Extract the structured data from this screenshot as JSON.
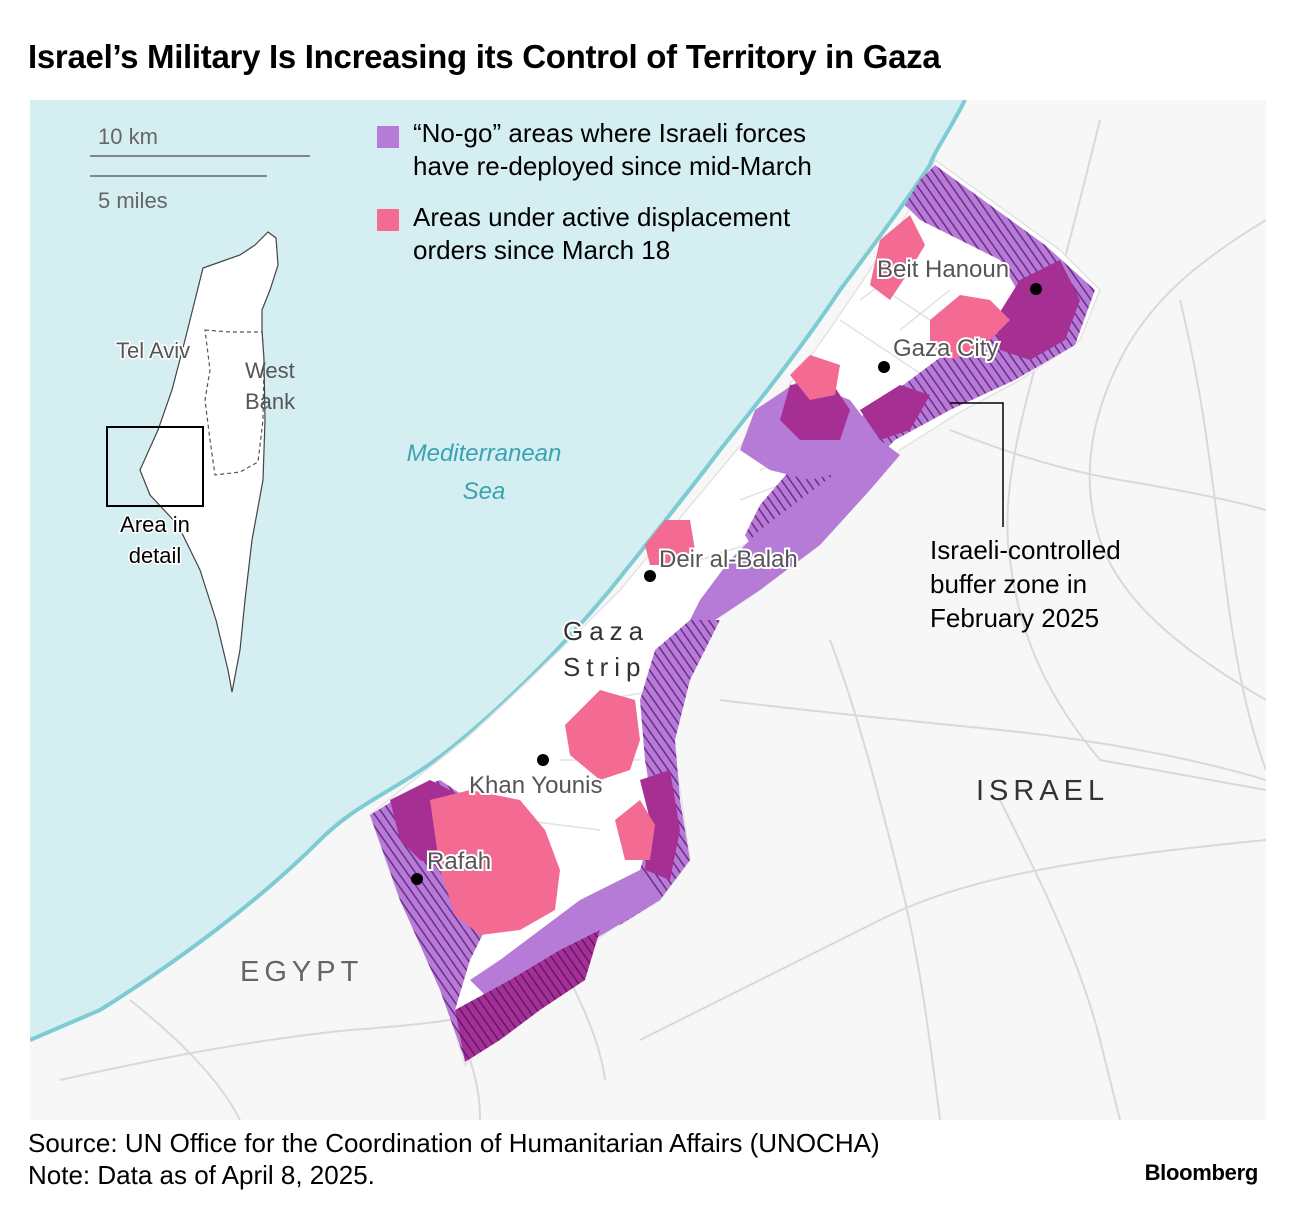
{
  "title": "Israel’s Military Is Increasing its Control of Territory in Gaza",
  "scale": {
    "km": "10 km",
    "miles": "5 miles"
  },
  "legend": [
    {
      "color": "#b57bd6",
      "line1": "“No-go” areas where Israeli forces",
      "line2": "have re-deployed since mid-March"
    },
    {
      "color": "#f36a92",
      "line1": "Areas under active displacement",
      "line2": "orders since March 18"
    }
  ],
  "colors": {
    "sea": "#d4eef1",
    "coast": "#7dcbd3",
    "land": "#f7f7f7",
    "strip": "#ffffff",
    "nogo": "#b57bd6",
    "displacement": "#f36a92",
    "overlap": "#a52f93",
    "buffer_hatch": "#7a3a8e"
  },
  "inset": {
    "tel_aviv": "Tel Aviv",
    "west_bank_1": "West",
    "west_bank_2": "Bank",
    "area_1": "Area in",
    "area_2": "detail"
  },
  "labels": {
    "sea_1": "Mediterranean",
    "sea_2": "Sea",
    "beit_hanoun": "Beit Hanoun",
    "gaza_city": "Gaza City",
    "deir_al_balah": "Deir al-Balah",
    "gaza_strip_1": "Gaza",
    "gaza_strip_2": "Strip",
    "khan_younis": "Khan Younis",
    "rafah": "Rafah",
    "israel": "ISRAEL",
    "egypt": "EGYPT",
    "buffer_1": "Israeli-controlled",
    "buffer_2": "buffer zone in",
    "buffer_3": "February 2025"
  },
  "source": "Source: UN Office for the Coordination of Humanitarian Affairs (UNOCHA)",
  "note": "Note: Data as of April 8, 2025.",
  "brand": "Bloomberg"
}
